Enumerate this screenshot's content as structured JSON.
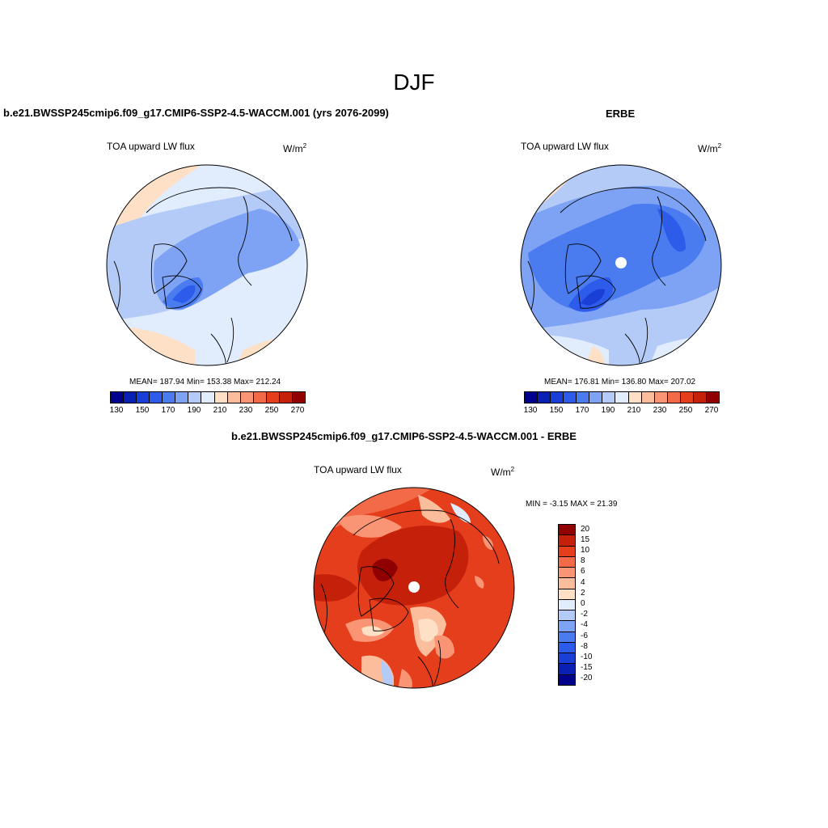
{
  "page_title": "DJF",
  "panels": {
    "model": {
      "case_title": "b.e21.BWSSP245cmip6.f09_g17.CMIP6-SSP2-4.5-WACCM.001 (yrs 2076-2099)",
      "variable": "TOA upward LW flux",
      "units_base": "W/m",
      "units_exp": "2",
      "stats": "MEAN= 187.94  Min= 153.38  Max= 212.24"
    },
    "obs": {
      "case_title": "ERBE",
      "variable": "TOA upward LW flux",
      "units_base": "W/m",
      "units_exp": "2",
      "stats": "MEAN= 176.81  Min= 136.80  Max= 207.02"
    },
    "diff": {
      "case_title": "b.e21.BWSSP245cmip6.f09_g17.CMIP6-SSP2-4.5-WACCM.001 - ERBE",
      "variable": "TOA upward LW flux",
      "units_base": "W/m",
      "units_exp": "2",
      "stats": "MIN =  -3.15 MAX =  21.39"
    }
  },
  "abs_colorbar": {
    "colors": [
      "#00008b",
      "#0a1fb3",
      "#1a3fd6",
      "#2d5ceb",
      "#4a7cf0",
      "#7ea3f5",
      "#b4cbf8",
      "#e1ecfc",
      "#fde0c5",
      "#fcbd9c",
      "#f99574",
      "#f36a48",
      "#e53e1c",
      "#c4200a",
      "#900000"
    ],
    "tick_labels": [
      "130",
      "150",
      "170",
      "190",
      "210",
      "230",
      "250",
      "270"
    ]
  },
  "diff_colorbar": {
    "colors": [
      "#900000",
      "#c4200a",
      "#e53e1c",
      "#f36a48",
      "#f99574",
      "#fcbd9c",
      "#fde0c5",
      "#e1ecfc",
      "#b4cbf8",
      "#7ea3f5",
      "#4a7cf0",
      "#2d5ceb",
      "#1a3fd6",
      "#0a1fb3",
      "#00008b"
    ],
    "tick_labels": [
      "20",
      "15",
      "10",
      "8",
      "6",
      "4",
      "2",
      "0",
      "-2",
      "-4",
      "-6",
      "-8",
      "-10",
      "-15",
      "-20"
    ]
  }
}
